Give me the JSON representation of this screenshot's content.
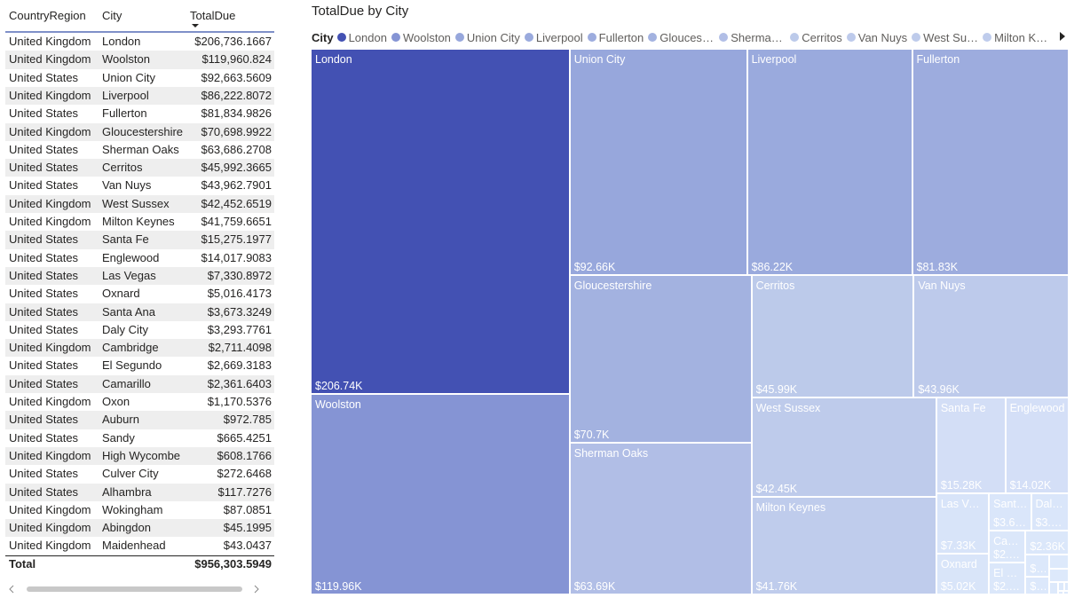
{
  "table": {
    "columns": [
      "CountryRegion",
      "City",
      "TotalDue"
    ],
    "rows": [
      [
        "United Kingdom",
        "London",
        "$206,736.1667"
      ],
      [
        "United Kingdom",
        "Woolston",
        "$119,960.824"
      ],
      [
        "United States",
        "Union City",
        "$92,663.5609"
      ],
      [
        "United Kingdom",
        "Liverpool",
        "$86,222.8072"
      ],
      [
        "United States",
        "Fullerton",
        "$81,834.9826"
      ],
      [
        "United Kingdom",
        "Gloucestershire",
        "$70,698.9922"
      ],
      [
        "United States",
        "Sherman Oaks",
        "$63,686.2708"
      ],
      [
        "United States",
        "Cerritos",
        "$45,992.3665"
      ],
      [
        "United States",
        "Van Nuys",
        "$43,962.7901"
      ],
      [
        "United Kingdom",
        "West Sussex",
        "$42,452.6519"
      ],
      [
        "United Kingdom",
        "Milton Keynes",
        "$41,759.6651"
      ],
      [
        "United States",
        "Santa Fe",
        "$15,275.1977"
      ],
      [
        "United States",
        "Englewood",
        "$14,017.9083"
      ],
      [
        "United States",
        "Las Vegas",
        "$7,330.8972"
      ],
      [
        "United States",
        "Oxnard",
        "$5,016.4173"
      ],
      [
        "United States",
        "Santa Ana",
        "$3,673.3249"
      ],
      [
        "United States",
        "Daly City",
        "$3,293.7761"
      ],
      [
        "United Kingdom",
        "Cambridge",
        "$2,711.4098"
      ],
      [
        "United States",
        "El Segundo",
        "$2,669.3183"
      ],
      [
        "United States",
        "Camarillo",
        "$2,361.6403"
      ],
      [
        "United Kingdom",
        "Oxon",
        "$1,170.5376"
      ],
      [
        "United States",
        "Auburn",
        "$972.785"
      ],
      [
        "United States",
        "Sandy",
        "$665.4251"
      ],
      [
        "United Kingdom",
        "High Wycombe",
        "$608.1766"
      ],
      [
        "United States",
        "Culver City",
        "$272.6468"
      ],
      [
        "United States",
        "Alhambra",
        "$117.7276"
      ],
      [
        "United Kingdom",
        "Wokingham",
        "$87.0851"
      ],
      [
        "United Kingdom",
        "Abingdon",
        "$45.1995"
      ],
      [
        "United Kingdom",
        "Maidenhead",
        "$43.0437"
      ]
    ],
    "total": [
      "Total",
      "$956,303.5949"
    ]
  },
  "chart_data": {
    "type": "treemap",
    "title": "TotalDue by City",
    "legend_title": "City",
    "categories": [
      "London",
      "Woolston",
      "Union City",
      "Liverpool",
      "Fullerton",
      "Gloucestershire",
      "Sherman Oaks",
      "Cerritos",
      "Van Nuys",
      "West Sussex",
      "Milton Keynes",
      "Santa Fe",
      "Englewood",
      "Las Vegas",
      "Oxnard",
      "Santa Ana",
      "Daly City",
      "Cambridge",
      "El Segundo",
      "Camarillo",
      "Oxon",
      "Auburn",
      "Sandy",
      "High Wycombe",
      "Culver City",
      "Alhambra",
      "Wokingham",
      "Abingdon",
      "Maidenhead"
    ],
    "values": [
      206736.1667,
      119960.824,
      92663.5609,
      86222.8072,
      81834.9826,
      70698.9922,
      63686.2708,
      45992.3665,
      43962.7901,
      42452.6519,
      41759.6651,
      15275.1977,
      14017.9083,
      7330.8972,
      5016.4173,
      3673.3249,
      3293.7761,
      2711.4098,
      2669.3183,
      2361.6403,
      1170.5376,
      972.785,
      665.4251,
      608.1766,
      272.6468,
      117.7276,
      87.0851,
      45.1995,
      43.0437
    ],
    "value_labels": [
      "$206.74K",
      "$119.96K",
      "$92.66K",
      "$86.22K",
      "$81.83K",
      "$70.7K",
      "$63.69K",
      "$45.99K",
      "$43.96K",
      "$42.45K",
      "$41.76K",
      "$15.28K",
      "$14.02K",
      "$7.33K",
      "$5.02K",
      "$3.67K",
      "$3.29K",
      "$2.71K",
      "$2.67K",
      "$2.36K",
      "$1.17K",
      "$0.97K",
      "$0.67K",
      "$0.61K",
      "$0.27K",
      "$0.12K",
      "$0.09K",
      "$0.05K",
      "$0.04K"
    ],
    "colors": [
      "#4351b3",
      "#8594d4",
      "#97a7dc",
      "#9aaadd",
      "#9dacde",
      "#a3b2e0",
      "#b1bee6",
      "#bccaea",
      "#bdcaeb",
      "#becbeb",
      "#bfccec",
      "#d3def6",
      "#d4dff7",
      "#d8e4f9",
      "#d9e5f9",
      "#dae6fa",
      "#dae6fa",
      "#dbe7fa",
      "#dbe7fa",
      "#dbe7fa",
      "#dce8fb",
      "#dce8fb",
      "#dde9fb",
      "#dde9fb",
      "#dde9fb",
      "#dde9fb",
      "#dde9fb",
      "#dde9fb",
      "#dde9fb"
    ]
  }
}
